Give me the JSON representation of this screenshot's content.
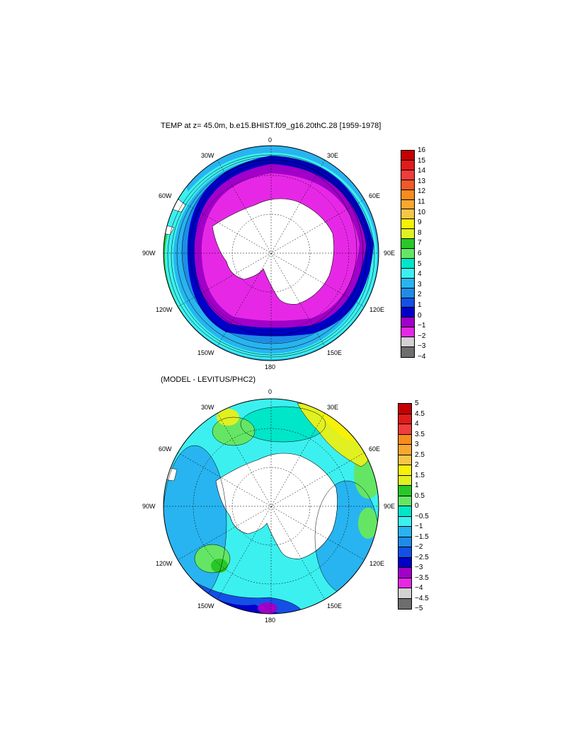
{
  "panel1": {
    "title": "TEMP at z=  45.0m, b.e15.BHIST.f09_g16.20thC.28 [1959-1978]",
    "lon_labels": {
      "top": "0",
      "upper_left": "30W",
      "upper_right": "30E",
      "mid_upper_left": "60W",
      "mid_upper_right": "60E",
      "left": "90W",
      "right": "90E",
      "lower_left": "120W",
      "lower_right": "120E",
      "bottom_left": "150W",
      "bottom_right": "150E",
      "bottom": "180"
    },
    "colorbar": {
      "labels": [
        "16",
        "15",
        "14",
        "13",
        "12",
        "11",
        "10",
        "9",
        "8",
        "7",
        "6",
        "5",
        "4",
        "3",
        "2",
        "1",
        "0",
        "−1",
        "−2",
        "−3",
        "−4"
      ],
      "colors": [
        "#c40000",
        "#e21a1a",
        "#f03c3c",
        "#f05a28",
        "#f78c1e",
        "#f7a830",
        "#f7c548",
        "#f7f00a",
        "#e0f020",
        "#28c828",
        "#64e664",
        "#00e6c8",
        "#3cf0f0",
        "#28b4f0",
        "#1e8ce6",
        "#1450e6",
        "#0000c8",
        "#a000c8",
        "#e628e6",
        "#d2d2d2",
        "#6e6e6e"
      ]
    }
  },
  "panel2": {
    "title": "(MODEL - LEVITUS/PHC2)",
    "lon_labels": {
      "top": "0",
      "upper_left": "30W",
      "upper_right": "30E",
      "mid_upper_left": "60W",
      "mid_upper_right": "60E",
      "left": "90W",
      "right": "90E",
      "lower_left": "120W",
      "lower_right": "120E",
      "bottom_left": "150W",
      "bottom_right": "150E",
      "bottom": "180"
    },
    "colorbar": {
      "labels": [
        "5",
        "4.5",
        "4",
        "3.5",
        "3",
        "2.5",
        "2",
        "1.5",
        "1",
        "0.5",
        "0",
        "−0.5",
        "−1",
        "−1.5",
        "−2",
        "−2.5",
        "−3",
        "−3.5",
        "−4",
        "−4.5",
        "−5"
      ],
      "colors": [
        "#c40000",
        "#e21a1a",
        "#f03c3c",
        "#f78c1e",
        "#f7a830",
        "#f7c548",
        "#f7f00a",
        "#e0f020",
        "#28c828",
        "#64e664",
        "#00e6c8",
        "#3cf0f0",
        "#28b4f0",
        "#1e8ce6",
        "#1450e6",
        "#0000c8",
        "#a000c8",
        "#e628e6",
        "#d2d2d2",
        "#6e6e6e"
      ]
    }
  }
}
